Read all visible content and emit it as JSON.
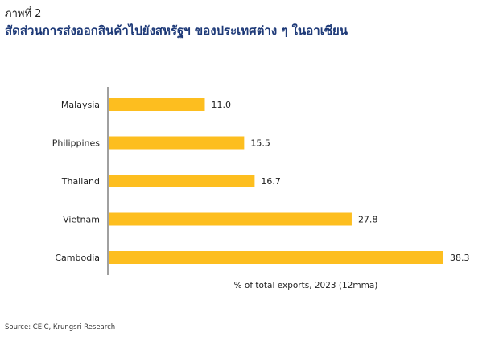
{
  "figure": {
    "label": "ภาพที่ 2",
    "title": "สัดส่วนการส่งออกสินค้าไปยังสหรัฐฯ ของประเทศต่าง ๆ ในอาเซียน",
    "source": "Source: CEIC, Krungsri Research"
  },
  "colors": {
    "bar": "#FDBE1F",
    "axis": "#404040",
    "text": "#1f1f1f",
    "title": "#1e3a78"
  },
  "chart_data": {
    "type": "bar",
    "orientation": "horizontal",
    "categories": [
      "Malaysia",
      "Philippines",
      "Thailand",
      "Vietnam",
      "Cambodia"
    ],
    "values": [
      11.0,
      15.5,
      16.7,
      27.8,
      38.3
    ],
    "value_labels": [
      "11.0",
      "15.5",
      "16.7",
      "27.8",
      "38.3"
    ],
    "xlabel": "% of total exports, 2023 (12mma)",
    "ylabel": "",
    "xlim": [
      0,
      38.3
    ],
    "grid": false,
    "legend": "none"
  }
}
